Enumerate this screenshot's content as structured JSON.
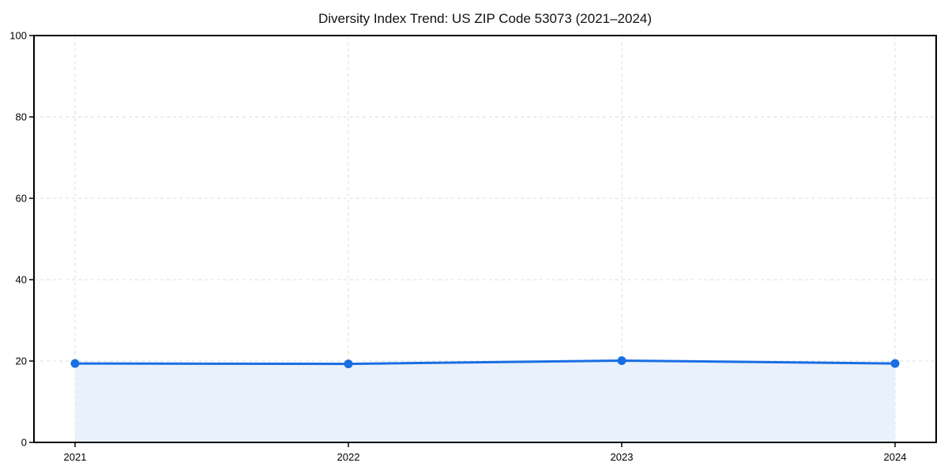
{
  "figure": {
    "background": "#ffffff"
  },
  "chart_data": {
    "type": "area",
    "title": "Diversity Index Trend: US ZIP Code 53073 (2021–2024)",
    "categories": [
      "2021",
      "2022",
      "2023",
      "2024"
    ],
    "values": [
      19.4,
      19.3,
      20.1,
      19.4
    ],
    "xlabel": "",
    "ylabel": "",
    "ylim": [
      0,
      100
    ],
    "yticks": [
      0,
      20,
      40,
      60,
      80,
      100
    ],
    "grid": true,
    "grid_style": "dashed",
    "legend": "none",
    "colors": {
      "line": "#1a6ee4",
      "marker": "#1a6ee4",
      "fill": "#e9f1fc",
      "grid": "#dcdcdc",
      "spine": "#000000",
      "tick_text": "#000000",
      "title_text": "#111111",
      "background": "#ffffff"
    }
  }
}
